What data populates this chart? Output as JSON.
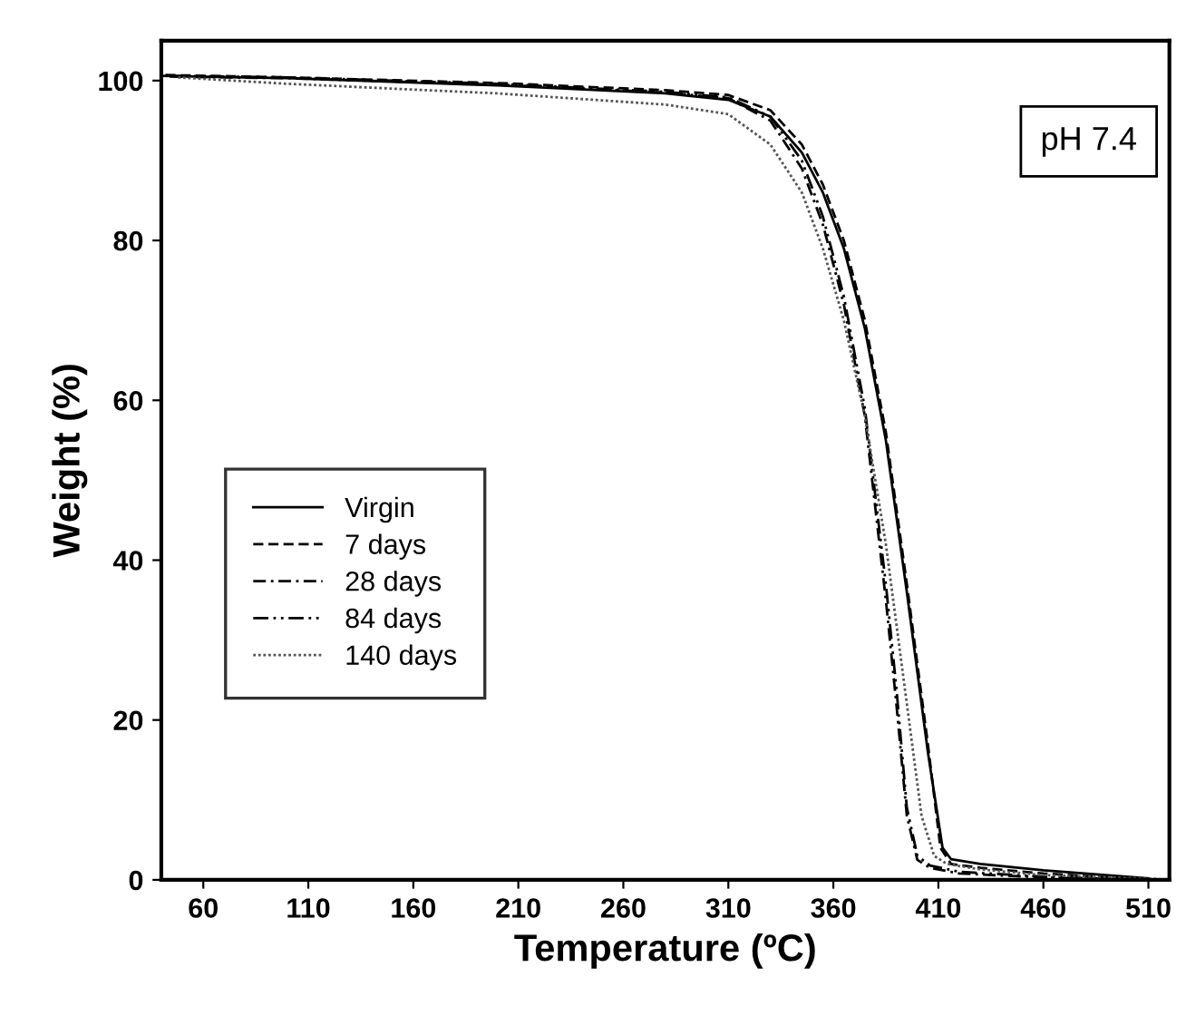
{
  "chart_data": {
    "type": "line",
    "xlabel": "Temperature (ºC)",
    "ylabel": "Weight (%)",
    "annotations": [
      "pH 7.4"
    ],
    "xlim": [
      40,
      520
    ],
    "ylim": [
      0,
      105
    ],
    "xticks": [
      60,
      110,
      160,
      210,
      260,
      310,
      360,
      410,
      460,
      510
    ],
    "yticks": [
      0,
      20,
      40,
      60,
      80,
      100
    ],
    "grid": false,
    "legend": "bottom left",
    "series": [
      {
        "name": "Virgin",
        "color": "#000000",
        "line_style": "solid",
        "x": [
          40,
          100,
          200,
          280,
          310,
          330,
          345,
          355,
          365,
          375,
          385,
          395,
          405,
          412,
          416,
          430,
          460,
          510
        ],
        "values": [
          100.6,
          100.3,
          99.4,
          98.4,
          97.6,
          95.5,
          91,
          86,
          79,
          69,
          55,
          36,
          16,
          4,
          2.6,
          2,
          1.2,
          0.2
        ]
      },
      {
        "name": "7 days",
        "color": "#000000",
        "line_style": "dashed",
        "x": [
          42,
          100,
          200,
          280,
          310,
          330,
          345,
          355,
          365,
          375,
          385,
          395,
          405,
          411,
          416,
          430,
          460,
          505
        ],
        "values": [
          100.7,
          100.4,
          99.7,
          98.8,
          98.2,
          96.3,
          92,
          87,
          80,
          70,
          56,
          37,
          17,
          4,
          2,
          1.5,
          0.8,
          0.1
        ]
      },
      {
        "name": "28 days",
        "color": "#000000",
        "line_style": "dashdot",
        "x": [
          44,
          100,
          200,
          280,
          310,
          330,
          345,
          355,
          365,
          375,
          385,
          390,
          395,
          400,
          406,
          420,
          460,
          500
        ],
        "values": [
          100.5,
          100.3,
          99.5,
          98.5,
          97.8,
          95,
          89,
          82,
          72,
          58,
          35,
          22,
          8,
          2.5,
          1.5,
          0.8,
          0.3,
          0
        ]
      },
      {
        "name": "84 days",
        "color": "#000000",
        "line_style": "dashdotdot",
        "x": [
          46,
          100,
          200,
          280,
          310,
          330,
          345,
          355,
          365,
          375,
          385,
          390,
          395,
          400,
          406,
          420,
          460,
          495
        ],
        "values": [
          100.6,
          100.4,
          99.6,
          98.6,
          97.9,
          95.5,
          90,
          83,
          73,
          59,
          37,
          24,
          9,
          3,
          1.8,
          1,
          0.4,
          0.1
        ]
      },
      {
        "name": "140 days",
        "color": "#555555",
        "line_style": "dotted",
        "x": [
          48,
          100,
          200,
          280,
          310,
          330,
          345,
          355,
          365,
          375,
          385,
          395,
          402,
          408,
          414,
          430,
          460,
          515
        ],
        "values": [
          100.4,
          99.6,
          98.4,
          97,
          95.8,
          92,
          86,
          79,
          70,
          58,
          42,
          22,
          8,
          3,
          2,
          1.3,
          0.6,
          0.1
        ]
      }
    ]
  }
}
